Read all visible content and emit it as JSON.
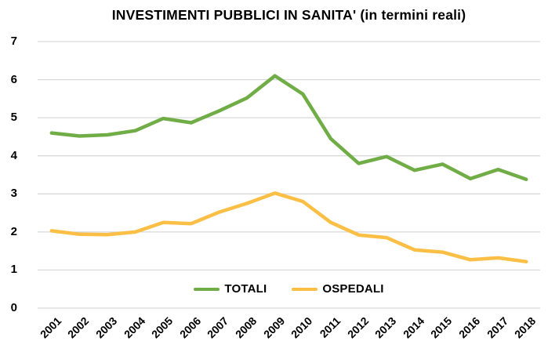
{
  "title": "INVESTIMENTI PUBBLICI IN SANITA' (in termini reali)",
  "colors": {
    "totali": "#70AD47",
    "ospedali": "#FBBF45",
    "gridline": "#D9D9D9",
    "text": "#000000",
    "background": "#FFFFFF"
  },
  "chart_data": {
    "type": "line",
    "title": "INVESTIMENTI PUBBLICI IN SANITA' (in termini reali)",
    "categories": [
      "2001",
      "2002",
      "2003",
      "2004",
      "2005",
      "2006",
      "2007",
      "2008",
      "2009",
      "2010",
      "2011",
      "2012",
      "2013",
      "2014",
      "2015",
      "2016",
      "2017",
      "2018"
    ],
    "series": [
      {
        "name": "TOTALI",
        "color_key": "totali",
        "values": [
          4.6,
          4.52,
          4.55,
          4.66,
          4.98,
          4.87,
          5.18,
          5.52,
          6.1,
          5.62,
          4.45,
          3.8,
          3.98,
          3.62,
          3.78,
          3.4,
          3.64,
          3.38
        ]
      },
      {
        "name": "OSPEDALI",
        "color_key": "ospedali",
        "values": [
          2.03,
          1.94,
          1.93,
          2.0,
          2.25,
          2.22,
          2.52,
          2.75,
          3.02,
          2.8,
          2.25,
          1.92,
          1.85,
          1.53,
          1.47,
          1.27,
          1.32,
          1.22
        ]
      }
    ],
    "xlabel": "",
    "ylabel": "",
    "ylim": [
      0,
      7
    ],
    "yticks": [
      0,
      1,
      2,
      3,
      4,
      5,
      6,
      7
    ],
    "grid": "horizontal",
    "legend_position": "bottom-inside"
  }
}
